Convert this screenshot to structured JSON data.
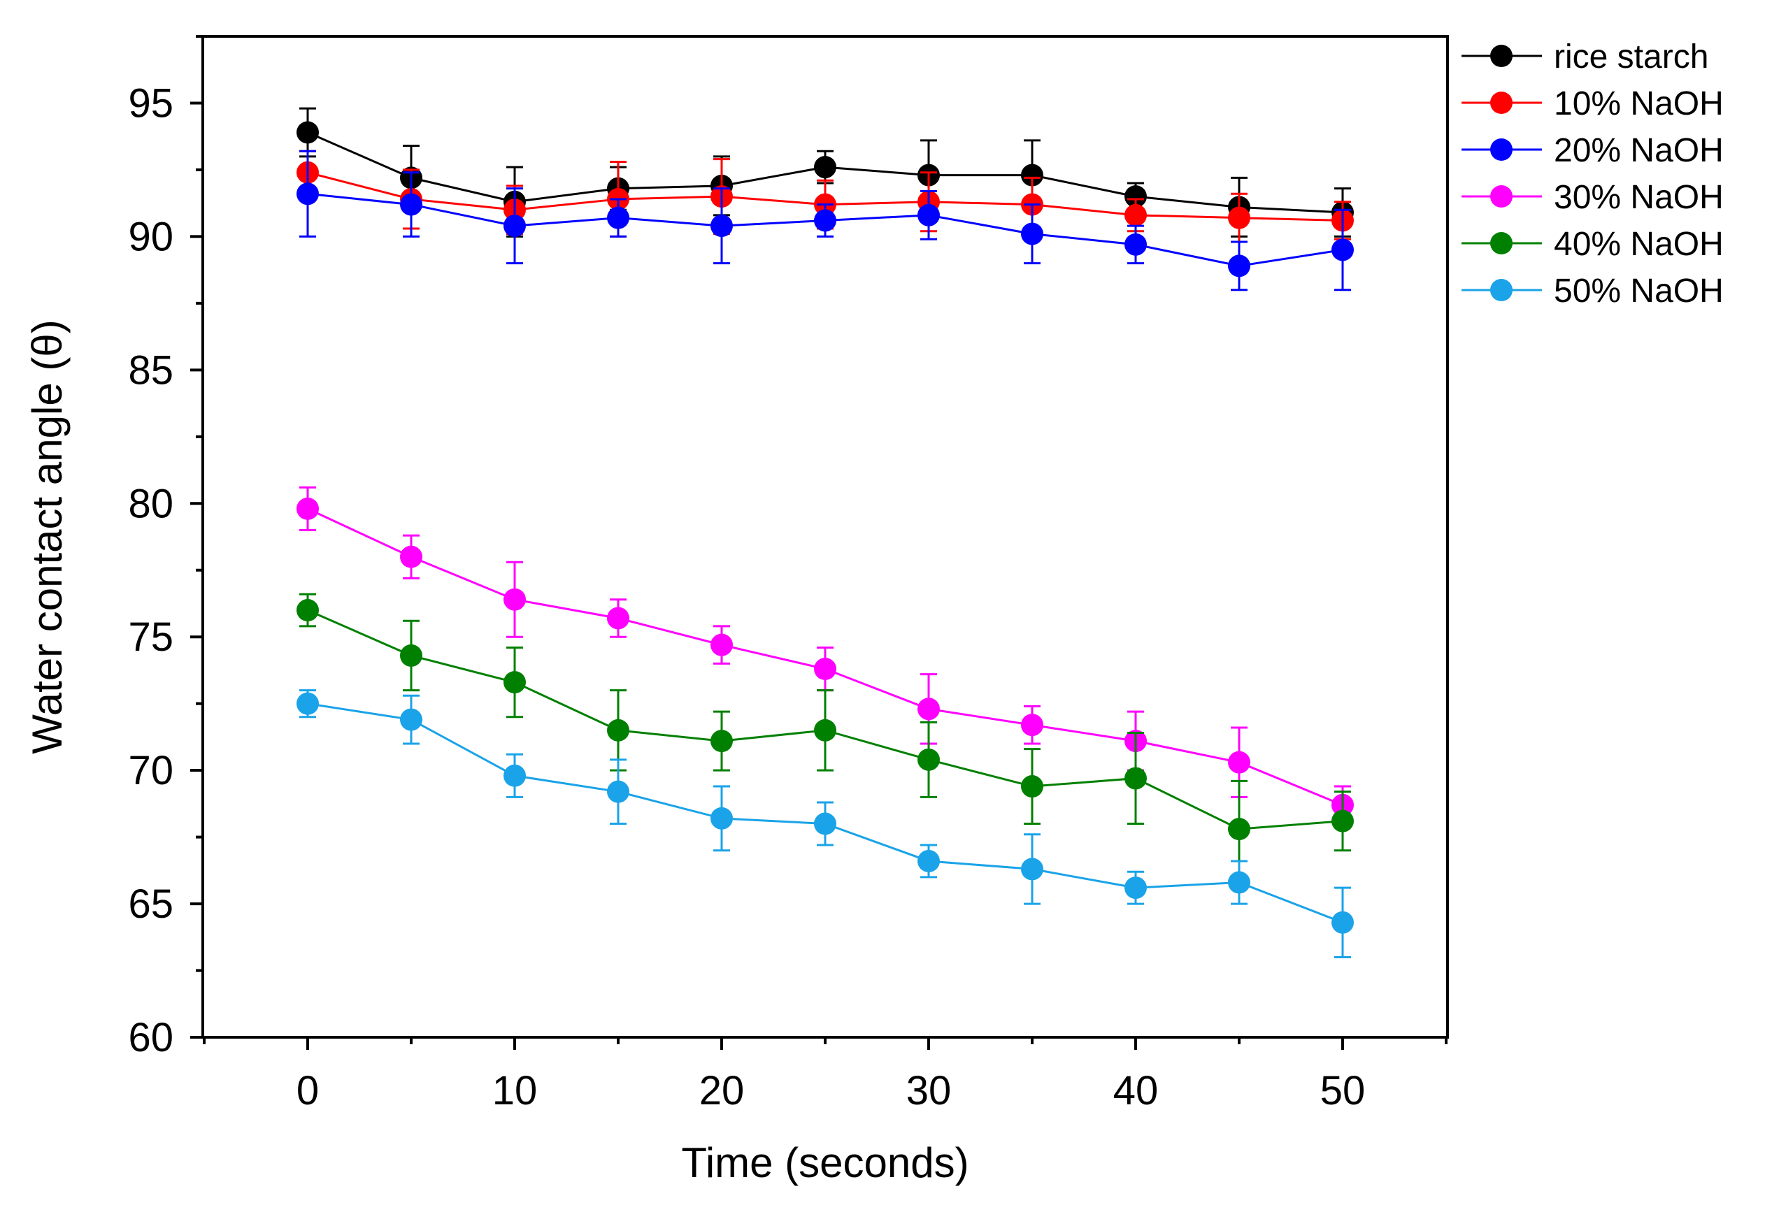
{
  "chart_data": {
    "type": "line",
    "title": "",
    "xlabel": "Time (seconds)",
    "ylabel": "Water contact angle (θ)",
    "xlim": [
      -5,
      55
    ],
    "ylim": [
      60,
      97.5
    ],
    "x_ticks": [
      0,
      10,
      20,
      30,
      40,
      50
    ],
    "x_tick_labels": [
      "0",
      "10",
      "20",
      "30",
      "40",
      "50"
    ],
    "y_ticks": [
      60,
      65,
      70,
      75,
      80,
      85,
      90,
      95
    ],
    "y_tick_labels": [
      "60",
      "65",
      "70",
      "75",
      "80",
      "85",
      "90",
      "95"
    ],
    "grid": false,
    "legend_position": "top-right",
    "x": [
      0,
      5,
      10,
      15,
      20,
      25,
      30,
      35,
      40,
      45,
      50
    ],
    "series": [
      {
        "name": "rice starch",
        "color": "#000000",
        "values": [
          93.9,
          92.2,
          91.3,
          91.8,
          91.9,
          92.6,
          92.3,
          92.3,
          91.5,
          91.1,
          90.9
        ],
        "errors": [
          0.9,
          1.2,
          1.3,
          0.8,
          1.1,
          0.6,
          1.3,
          1.3,
          0.5,
          1.1,
          0.9
        ]
      },
      {
        "name": "10% NaOH",
        "color": "#ff0000",
        "values": [
          92.4,
          91.4,
          91.0,
          91.4,
          91.5,
          91.2,
          91.3,
          91.2,
          90.8,
          90.7,
          90.6
        ],
        "errors": [
          0.8,
          1.1,
          0.9,
          1.4,
          1.4,
          0.9,
          1.1,
          1.0,
          0.6,
          0.9,
          0.7
        ]
      },
      {
        "name": "20% NaOH",
        "color": "#0000ff",
        "values": [
          91.6,
          91.2,
          90.4,
          90.7,
          90.4,
          90.6,
          90.8,
          90.1,
          89.7,
          88.9,
          89.5
        ],
        "errors": [
          1.6,
          1.2,
          1.4,
          0.7,
          1.4,
          0.6,
          0.9,
          1.1,
          0.7,
          0.9,
          1.5
        ]
      },
      {
        "name": "30% NaOH",
        "color": "#ff00ff",
        "values": [
          79.8,
          78.0,
          76.4,
          75.7,
          74.7,
          73.8,
          72.3,
          71.7,
          71.1,
          70.3,
          68.7
        ],
        "errors": [
          0.8,
          0.8,
          1.4,
          0.7,
          0.7,
          0.8,
          1.3,
          0.7,
          1.1,
          1.3,
          0.7
        ]
      },
      {
        "name": "40% NaOH",
        "color": "#008000",
        "values": [
          76.0,
          74.3,
          73.3,
          71.5,
          71.1,
          71.5,
          70.4,
          69.4,
          69.7,
          67.8,
          68.1
        ],
        "errors": [
          0.6,
          1.3,
          1.3,
          1.5,
          1.1,
          1.5,
          1.4,
          1.4,
          1.7,
          1.8,
          1.1
        ]
      },
      {
        "name": "50% NaOH",
        "color": "#1aa3e8",
        "values": [
          72.5,
          71.9,
          69.8,
          69.2,
          68.2,
          68.0,
          66.6,
          66.3,
          65.6,
          65.8,
          64.3
        ],
        "errors": [
          0.5,
          0.9,
          0.8,
          1.2,
          1.2,
          0.8,
          0.6,
          1.3,
          0.6,
          0.8,
          1.3
        ]
      }
    ]
  }
}
